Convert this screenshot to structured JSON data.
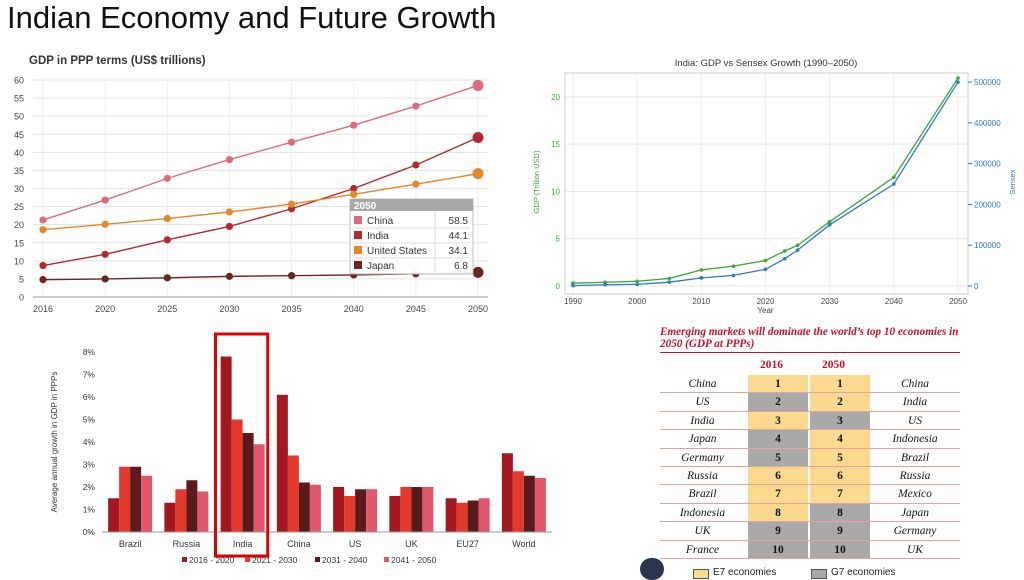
{
  "slide": {
    "title": "Indian Economy and Future Growth"
  },
  "chart_data": [
    {
      "type": "line",
      "title": "GDP in PPP terms (US$ trillions)",
      "x": [
        "2016",
        "2020",
        "2025",
        "2030",
        "2035",
        "2040",
        "2045",
        "2050"
      ],
      "ylim": [
        0,
        60
      ],
      "yticks": [
        "0",
        "5",
        "10",
        "15",
        "20",
        "25",
        "30",
        "35",
        "40",
        "45",
        "50",
        "55",
        "60"
      ],
      "grid": true,
      "series": [
        {
          "name": "China",
          "color": "#e06a7b",
          "values": [
            21.3,
            26.8,
            32.8,
            38.0,
            42.8,
            47.5,
            52.8,
            58.5
          ]
        },
        {
          "name": "India",
          "color": "#b22a2e",
          "values": [
            8.7,
            11.8,
            15.8,
            19.5,
            24.4,
            30.0,
            36.5,
            44.1
          ]
        },
        {
          "name": "United States",
          "color": "#e8862b",
          "values": [
            18.6,
            20.1,
            21.7,
            23.5,
            25.7,
            28.4,
            31.2,
            34.1
          ]
        },
        {
          "name": "Japan",
          "color": "#6b2424",
          "values": [
            4.8,
            5.0,
            5.3,
            5.7,
            5.9,
            6.1,
            6.4,
            6.8
          ]
        }
      ],
      "tooltip": {
        "header": "2050",
        "rows": [
          {
            "label": "China",
            "value": "58.5",
            "color": "#e06a7b"
          },
          {
            "label": "India",
            "value": "44.1",
            "color": "#b22a2e"
          },
          {
            "label": "United States",
            "value": "34.1",
            "color": "#e8862b"
          },
          {
            "label": "Japan",
            "value": "6.8",
            "color": "#6b2424"
          }
        ]
      }
    },
    {
      "type": "line",
      "title": "India: GDP vs Sensex Growth (1990–2050)",
      "xlabel": "Year",
      "ylabel": "GDP (Trillion USD)",
      "y2label": "Sensex",
      "xticks": [
        "1990",
        "2000",
        "2010",
        "2020",
        "2030",
        "2040",
        "2050"
      ],
      "yticks": [
        "0",
        "5",
        "10",
        "15",
        "20"
      ],
      "y2ticks": [
        "0",
        "100000",
        "200000",
        "300000",
        "400000",
        "500000"
      ],
      "ylim": [
        0,
        22
      ],
      "y2lim": [
        0,
        510000
      ],
      "xlim": [
        1990,
        2050
      ],
      "grid": true,
      "series": [
        {
          "name": "GDP",
          "axis": "left",
          "color": "#3aa83a",
          "x": [
            1990,
            1995,
            2000,
            2005,
            2010,
            2015,
            2020,
            2023,
            2025,
            2030,
            2040,
            2050
          ],
          "values": [
            0.3,
            0.4,
            0.5,
            0.8,
            1.7,
            2.1,
            2.7,
            3.7,
            4.3,
            6.8,
            11.5,
            22
          ]
        },
        {
          "name": "Sensex",
          "axis": "right",
          "color": "#2b7bbf",
          "x": [
            1990,
            1995,
            2000,
            2005,
            2010,
            2015,
            2020,
            2023,
            2025,
            2030,
            2040,
            2050
          ],
          "values": [
            1000,
            3100,
            4000,
            9400,
            20000,
            26000,
            41000,
            67000,
            88000,
            150000,
            250000,
            500000
          ]
        }
      ]
    },
    {
      "type": "bar",
      "ylabel": "Average annual growth in GDP in PPPs",
      "categories": [
        "Brazil",
        "Russia",
        "India",
        "China",
        "US",
        "UK",
        "EU27",
        "World"
      ],
      "ylim": [
        0,
        8
      ],
      "yticks": [
        "0%",
        "1%",
        "2%",
        "3%",
        "4%",
        "5%",
        "6%",
        "7%",
        "8%"
      ],
      "highlight": "India",
      "highlight_color": "#e00000",
      "series": [
        {
          "name": "2016 - 2020",
          "color": "#a3191f",
          "values": [
            1.5,
            1.3,
            7.8,
            6.1,
            2.0,
            1.6,
            1.5,
            3.5
          ]
        },
        {
          "name": "2021 - 2030",
          "color": "#e2392c",
          "values": [
            2.9,
            1.9,
            5.0,
            3.4,
            1.6,
            2.0,
            1.3,
            2.7
          ]
        },
        {
          "name": "2031 - 2040",
          "color": "#5b1a1c",
          "values": [
            2.9,
            2.3,
            4.4,
            2.2,
            1.9,
            2.0,
            1.4,
            2.5
          ]
        },
        {
          "name": "2041 - 2050",
          "color": "#e0566a",
          "values": [
            2.5,
            1.8,
            3.9,
            2.1,
            1.9,
            2.0,
            1.5,
            2.4
          ]
        }
      ]
    },
    {
      "type": "table",
      "title": "Emerging markets will dominate the world’s top 10 economies in 2050 (GDP at PPPs)",
      "columns": [
        "2016",
        "2050"
      ],
      "rows": [
        {
          "left": "China",
          "rank2016": "1",
          "rank2050": "1",
          "right": "China",
          "c2016": "e7",
          "c2050": "e7"
        },
        {
          "left": "US",
          "rank2016": "2",
          "rank2050": "2",
          "right": "India",
          "c2016": "g7",
          "c2050": "e7"
        },
        {
          "left": "India",
          "rank2016": "3",
          "rank2050": "3",
          "right": "US",
          "c2016": "e7",
          "c2050": "g7"
        },
        {
          "left": "Japan",
          "rank2016": "4",
          "rank2050": "4",
          "right": "Indonesia",
          "c2016": "g7",
          "c2050": "e7"
        },
        {
          "left": "Germany",
          "rank2016": "5",
          "rank2050": "5",
          "right": "Brazil",
          "c2016": "g7",
          "c2050": "e7"
        },
        {
          "left": "Russia",
          "rank2016": "6",
          "rank2050": "6",
          "right": "Russia",
          "c2016": "e7",
          "c2050": "e7"
        },
        {
          "left": "Brazil",
          "rank2016": "7",
          "rank2050": "7",
          "right": "Mexico",
          "c2016": "e7",
          "c2050": "e7"
        },
        {
          "left": "Indonesia",
          "rank2016": "8",
          "rank2050": "8",
          "right": "Japan",
          "c2016": "e7",
          "c2050": "g7"
        },
        {
          "left": "UK",
          "rank2016": "9",
          "rank2050": "9",
          "right": "Germany",
          "c2016": "g7",
          "c2050": "g7"
        },
        {
          "left": "France",
          "rank2016": "10",
          "rank2050": "10",
          "right": "UK",
          "c2016": "g7",
          "c2050": "g7"
        }
      ],
      "legend": [
        {
          "label": "E7 economies",
          "color": "#fbd98f"
        },
        {
          "label": "G7 economies",
          "color": "#a9a9a9"
        }
      ]
    }
  ]
}
